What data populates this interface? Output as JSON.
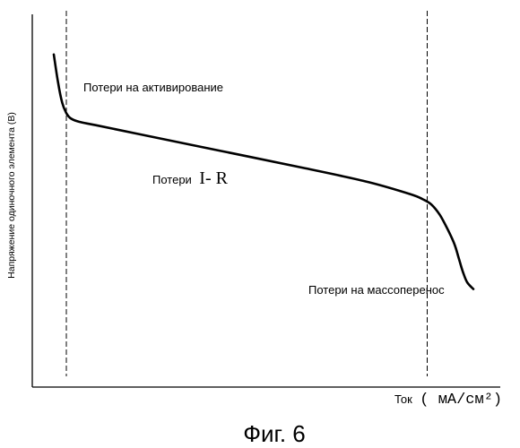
{
  "chart_data": {
    "type": "line",
    "title": "",
    "xlabel": "Ток",
    "xlabel_unit": "( мА/см²)",
    "ylabel": "Напряжение одиночного элемента (В)",
    "x_ticks": [],
    "y_ticks": [],
    "grid": false,
    "legend": "none",
    "xlim": [
      0,
      100
    ],
    "ylim": [
      0,
      100
    ],
    "series": [
      {
        "x": [
          0,
          1,
          2,
          3,
          4,
          6,
          10,
          20,
          40,
          60,
          75,
          85,
          88,
          90,
          92,
          94,
          95.5,
          96.5,
          97.5,
          98.5,
          100
        ],
        "values": [
          92,
          84,
          78,
          75,
          73.5,
          72.5,
          71.5,
          69,
          64,
          59,
          55,
          51.5,
          50,
          48.5,
          45.5,
          41,
          37,
          33,
          29,
          26,
          24
        ]
      }
    ],
    "color": "#000000",
    "region_dividers_x": [
      3,
      89
    ],
    "annotations": [
      {
        "text": "Потери на активирование"
      },
      {
        "text": "Потери",
        "symbol": "I- R"
      },
      {
        "text": "Потери на массоперенос"
      }
    ]
  },
  "caption": "Фиг. 6"
}
